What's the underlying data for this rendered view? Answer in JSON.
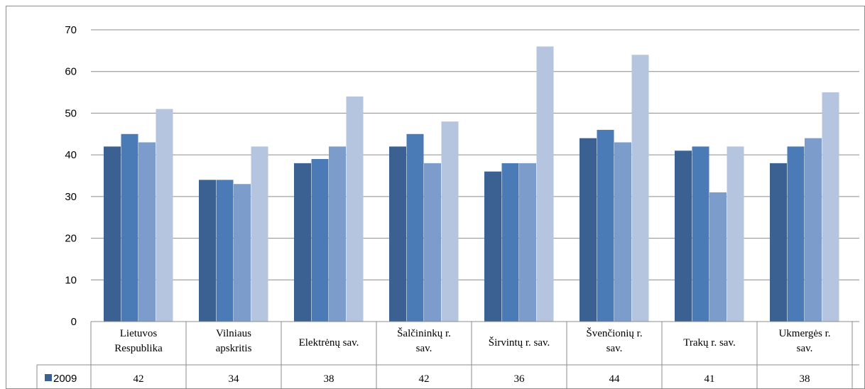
{
  "chart_data": {
    "type": "bar",
    "title": "",
    "xlabel": "",
    "ylabel": "",
    "ylim": [
      0,
      70
    ],
    "yticks": [
      "0",
      "10",
      "20",
      "30",
      "40",
      "50",
      "60",
      "70"
    ],
    "grid": true,
    "legend": "data-table-left",
    "categories": [
      [
        "Lietuvos",
        "Respublika"
      ],
      [
        "Vilniaus",
        "apskritis"
      ],
      [
        "Elektrėnų sav."
      ],
      [
        "Šalčininkų r.",
        "sav."
      ],
      [
        "Širvintų r. sav."
      ],
      [
        "Švenčionių r.",
        "sav."
      ],
      [
        "Trakų r. sav."
      ],
      [
        "Ukmergės r.",
        "sav."
      ]
    ],
    "series": [
      {
        "name": "2009",
        "color": "#3b6193",
        "values": [
          42,
          34,
          38,
          42,
          36,
          44,
          41,
          38
        ]
      },
      {
        "color": "#4a7bb7",
        "values": [
          45,
          34,
          39,
          45,
          38,
          46,
          42,
          42
        ]
      },
      {
        "color": "#7c9ccb",
        "values": [
          43,
          33,
          42,
          38,
          38,
          43,
          31,
          44
        ]
      },
      {
        "color": "#b5c5e0",
        "values": [
          51,
          42,
          54,
          48,
          66,
          64,
          42,
          55
        ]
      }
    ],
    "table_rows": [
      {
        "label": "2009",
        "cells": [
          "42",
          "34",
          "38",
          "42",
          "36",
          "44",
          "41",
          "38"
        ]
      }
    ]
  }
}
